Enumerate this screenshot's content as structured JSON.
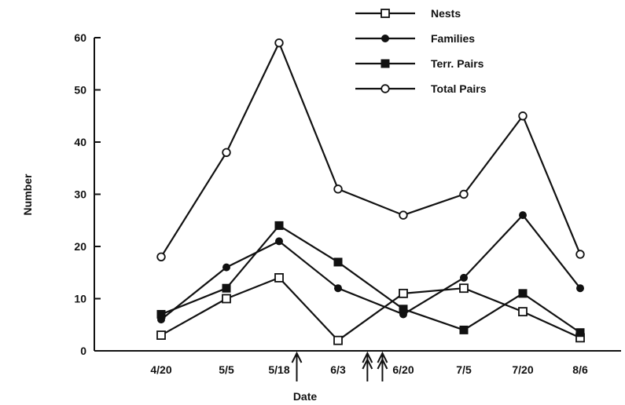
{
  "chart_data": {
    "type": "line",
    "title": "",
    "xlabel": "Date",
    "ylabel": "Number",
    "categories": [
      "4/20",
      "5/5",
      "5/18",
      "6/3",
      "6/20",
      "7/5",
      "7/20",
      "8/6"
    ],
    "ylim": [
      0,
      60
    ],
    "yticks": [
      0,
      10,
      20,
      30,
      40,
      50,
      60
    ],
    "grid": false,
    "legend_position": "top-right",
    "series": [
      {
        "name": "Nests",
        "marker": "open-square",
        "values": [
          3,
          10,
          14,
          2,
          11,
          12,
          7.5,
          2.5
        ]
      },
      {
        "name": "Families",
        "marker": "filled-circle",
        "values": [
          6,
          16,
          21,
          12,
          7,
          14,
          26,
          12
        ]
      },
      {
        "name": "Terr. Pairs",
        "marker": "filled-square",
        "values": [
          7,
          12,
          24,
          17,
          8,
          4,
          11,
          3.5
        ]
      },
      {
        "name": "Total Pairs",
        "marker": "open-circle",
        "values": [
          18,
          38,
          59,
          31,
          26,
          30,
          45,
          18.5
        ]
      }
    ],
    "annotations": [
      {
        "type": "arrow",
        "x_between": [
          "5/18",
          "6/3"
        ],
        "position": 0.3
      },
      {
        "type": "double-arrow",
        "x_between": [
          "6/3",
          "6/20"
        ],
        "position": 0.45
      },
      {
        "type": "double-arrow",
        "x_between": [
          "6/3",
          "6/20"
        ],
        "position": 0.68
      }
    ]
  }
}
